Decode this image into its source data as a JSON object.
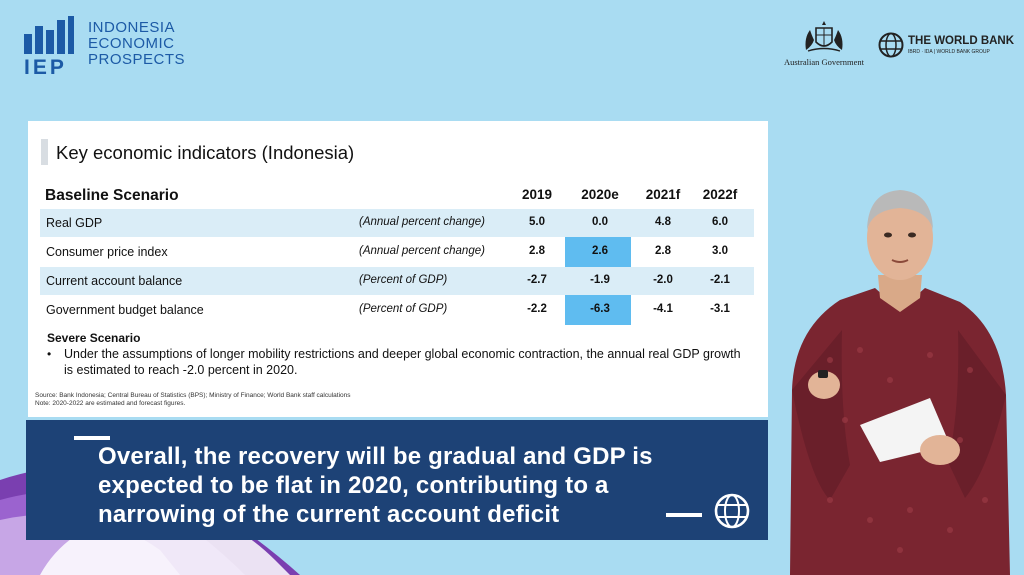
{
  "branding": {
    "iep_abbr": "IEP",
    "iep_line1": "INDONESIA",
    "iep_line2": "ECONOMIC",
    "iep_line3": "PROSPECTS",
    "australian_gov": "Australian Government",
    "world_bank": "THE WORLD BANK",
    "world_bank_sub": "IBRD · IDA | WORLD BANK GROUP"
  },
  "slide": {
    "title": "Key economic indicators (Indonesia)",
    "table": {
      "header_label": "Baseline Scenario",
      "years": [
        "2019",
        "2020e",
        "2021f",
        "2022f"
      ],
      "rows": [
        {
          "name": "Real GDP",
          "unit": "(Annual percent change)",
          "values": [
            "5.0",
            "0.0",
            "4.8",
            "6.0"
          ]
        },
        {
          "name": "Consumer price index",
          "unit": "(Annual percent change)",
          "values": [
            "2.8",
            "2.6",
            "2.8",
            "3.0"
          ]
        },
        {
          "name": "Current account balance",
          "unit": "(Percent of GDP)",
          "values": [
            "-2.7",
            "-1.9",
            "-2.0",
            "-2.1"
          ]
        },
        {
          "name": "Government budget balance",
          "unit": "(Percent of GDP)",
          "values": [
            "-2.2",
            "-6.3",
            "-4.1",
            "-3.1"
          ]
        }
      ]
    },
    "severe_heading": "Severe Scenario",
    "severe_bullet": "•",
    "severe_text": "Under the assumptions of longer mobility restrictions and deeper global economic contraction, the annual real GDP growth is estimated to reach -2.0 percent in 2020.",
    "source_line1": "Source: Bank Indonesia; Central Bureau of Statistics (BPS); Ministry of Finance; World Bank staff calculations",
    "source_line2": "Note: 2020-2022 are estimated and forecast figures."
  },
  "caption": {
    "text": "Overall, the recovery will be gradual and GDP is expected to be flat in 2020, contributing to a narrowing of the current account deficit"
  },
  "colors": {
    "background": "#a9dcf2",
    "brand_blue": "#1c5aa6",
    "caption_bg": "#1d4276",
    "highlight_column": "#5fbcf0",
    "row_shade": "#daedf7"
  },
  "icons": [
    "iep-bars-icon",
    "australian-crest-icon",
    "world-bank-globe-icon",
    "caption-globe-icon"
  ]
}
